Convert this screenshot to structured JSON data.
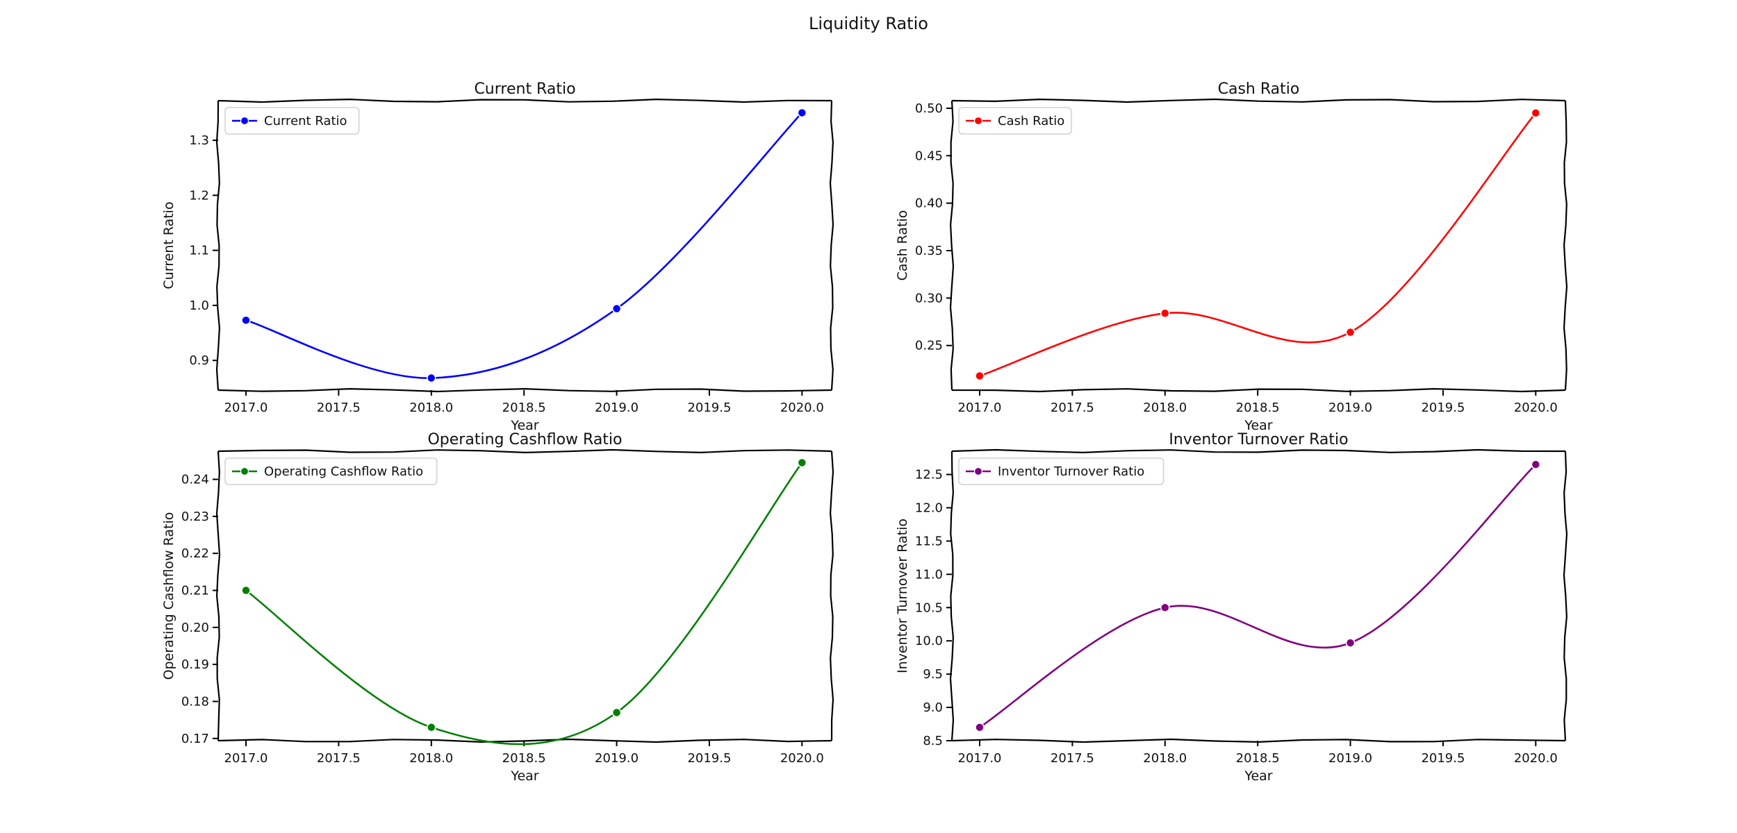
{
  "figure": {
    "title": "Liquidity Ratio"
  },
  "chart_data": [
    {
      "type": "line",
      "title": "Current Ratio",
      "xlabel": "Year",
      "ylabel": "Current Ratio",
      "x": [
        2017,
        2018,
        2019,
        2020
      ],
      "xticks": [
        "2017.0",
        "2017.5",
        "2018.0",
        "2018.5",
        "2019.0",
        "2019.5",
        "2020.0"
      ],
      "yticks": [
        "0.9",
        "1.0",
        "1.1",
        "1.2",
        "1.3"
      ],
      "xlim": [
        2016.85,
        2020.16
      ],
      "ylim": [
        0.846,
        1.372
      ],
      "legend_position": "upper-left",
      "grid": false,
      "series": [
        {
          "name": "Current Ratio",
          "color": "#0000ff",
          "values": [
            0.973,
            0.868,
            0.994,
            1.35
          ]
        }
      ]
    },
    {
      "type": "line",
      "title": "Cash Ratio",
      "xlabel": "Year",
      "ylabel": "Cash Ratio",
      "x": [
        2017,
        2018,
        2019,
        2020
      ],
      "xticks": [
        "2017.0",
        "2017.5",
        "2018.0",
        "2018.5",
        "2019.0",
        "2019.5",
        "2020.0"
      ],
      "yticks": [
        "0.25",
        "0.30",
        "0.35",
        "0.40",
        "0.45",
        "0.50"
      ],
      "xlim": [
        2016.85,
        2020.16
      ],
      "ylim": [
        0.203,
        0.508
      ],
      "legend_position": "upper-left",
      "grid": false,
      "series": [
        {
          "name": "Cash Ratio",
          "color": "#ff0000",
          "values": [
            0.218,
            0.284,
            0.264,
            0.495
          ]
        }
      ]
    },
    {
      "type": "line",
      "title": "Operating Cashflow Ratio",
      "xlabel": "Year",
      "ylabel": "Operating Cashflow Ratio",
      "x": [
        2017,
        2018,
        2019,
        2020
      ],
      "xticks": [
        "2017.0",
        "2017.5",
        "2018.0",
        "2018.5",
        "2019.0",
        "2019.5",
        "2020.0"
      ],
      "yticks": [
        "0.17",
        "0.18",
        "0.19",
        "0.20",
        "0.21",
        "0.22",
        "0.23",
        "0.24"
      ],
      "xlim": [
        2016.85,
        2020.16
      ],
      "ylim": [
        0.1694,
        0.2476
      ],
      "legend_position": "upper-left",
      "grid": false,
      "series": [
        {
          "name": "Operating Cashflow Ratio",
          "color": "#008000",
          "values": [
            0.21,
            0.173,
            0.177,
            0.2445
          ]
        }
      ]
    },
    {
      "type": "line",
      "title": "Inventor Turnover Ratio",
      "xlabel": "Year",
      "ylabel": "Inventor Turnover Ratio",
      "x": [
        2017,
        2018,
        2019,
        2020
      ],
      "xticks": [
        "2017.0",
        "2017.5",
        "2018.0",
        "2018.5",
        "2019.0",
        "2019.5",
        "2020.0"
      ],
      "yticks": [
        "8.5",
        "9.0",
        "9.5",
        "10.0",
        "10.5",
        "11.0",
        "11.5",
        "12.0",
        "12.5"
      ],
      "xlim": [
        2016.85,
        2020.16
      ],
      "ylim": [
        8.5,
        12.85
      ],
      "legend_position": "upper-left",
      "grid": false,
      "series": [
        {
          "name": "Inventor Turnover Ratio",
          "color": "#800080",
          "values": [
            8.7,
            10.5,
            9.97,
            12.65
          ]
        }
      ]
    }
  ]
}
